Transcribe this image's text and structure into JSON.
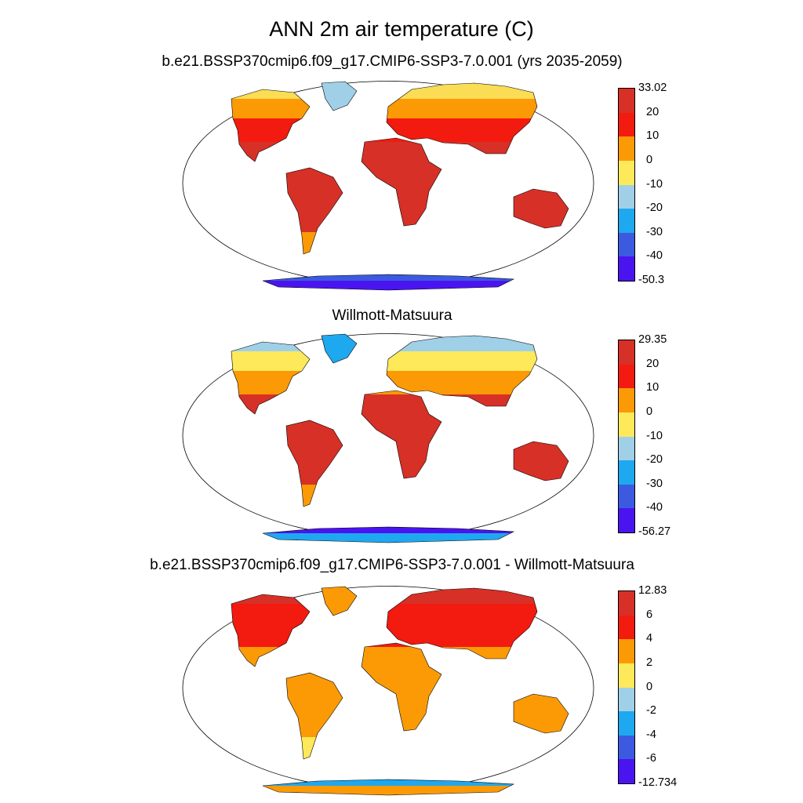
{
  "figure": {
    "title": "ANN 2m air temperature (C)"
  },
  "panels": [
    {
      "title": "b.e21.BSSP370cmip6.f09_g17.CMIP6-SSP3-7.0.001 (yrs 2035-2059)",
      "colorbar": {
        "colors": [
          "#d73027",
          "#f31a0f",
          "#fb9a05",
          "#fde95a",
          "#9fd0e8",
          "#1ea8f0",
          "#3c5ae0",
          "#4a14f0"
        ],
        "labels": [
          "33.02",
          "20",
          "10",
          "0",
          "-10",
          "-20",
          "-30",
          "-40",
          "-50.3"
        ]
      },
      "regions": {
        "arctic": "#fbdd55",
        "north": "#fb9a05",
        "mid": "#f31a0f",
        "tropic": "#d73027",
        "south": "#fb9a05",
        "greenland": "#9fd0e8",
        "antarctic": "#4a14f0",
        "antarctic_edge": "#3c5ae0"
      }
    },
    {
      "title": "Willmott-Matsuura",
      "colorbar": {
        "colors": [
          "#d73027",
          "#f31a0f",
          "#fb9a05",
          "#fde95a",
          "#9fd0e8",
          "#1ea8f0",
          "#3c5ae0",
          "#4a14f0"
        ],
        "labels": [
          "29.35",
          "20",
          "10",
          "0",
          "-10",
          "-20",
          "-30",
          "-40",
          "-56.27"
        ]
      },
      "regions": {
        "arctic": "#9fd0e8",
        "north": "#fde95a",
        "mid": "#fb9a05",
        "tropic": "#d73027",
        "south": "#fb9a05",
        "greenland": "#1ea8f0",
        "antarctic": "#1ea8f0",
        "antarctic_edge": "#4a14f0"
      }
    },
    {
      "title": "b.e21.BSSP370cmip6.f09_g17.CMIP6-SSP3-7.0.001 - Willmott-Matsuura",
      "colorbar": {
        "colors": [
          "#d73027",
          "#f31a0f",
          "#fb9a05",
          "#fde95a",
          "#9fd0e8",
          "#1ea8f0",
          "#3c5ae0",
          "#4a14f0"
        ],
        "labels": [
          "12.83",
          "6",
          "4",
          "2",
          "0",
          "-2",
          "-4",
          "-6",
          "-12.734"
        ]
      },
      "regions": {
        "arctic": "#d73027",
        "north": "#f31a0f",
        "mid": "#f31a0f",
        "tropic": "#fb9a05",
        "south": "#fde95a",
        "greenland": "#fb9a05",
        "antarctic": "#fb9a05",
        "antarctic_edge": "#1ea8f0"
      }
    }
  ]
}
